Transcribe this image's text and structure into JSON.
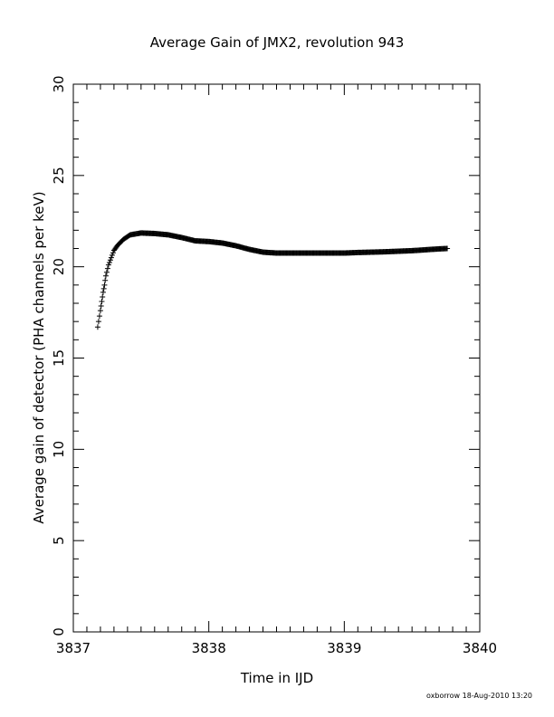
{
  "chart_data": {
    "type": "scatter",
    "title": "Average Gain of JMX2, revolution 943",
    "xlabel": "Time in IJD",
    "ylabel": "Average gain of detector (PHA channels per keV)",
    "xlim": [
      3837,
      3840
    ],
    "ylim": [
      0,
      30
    ],
    "x_ticks": [
      "3837",
      "3838",
      "3839",
      "3840"
    ],
    "y_ticks": [
      "0",
      "5",
      "10",
      "15",
      "20",
      "25",
      "30"
    ],
    "marker": "plus",
    "grid": false,
    "footer": "oxborrow 18-Aug-2010 13:20",
    "series": [
      {
        "points": [
          [
            3837.18,
            16.7
          ],
          [
            3837.2,
            17.6
          ],
          [
            3837.21,
            18.1
          ],
          [
            3837.22,
            18.6
          ],
          [
            3837.23,
            19.0
          ],
          [
            3837.24,
            19.5
          ],
          [
            3837.26,
            20.1
          ],
          [
            3837.28,
            20.5
          ],
          [
            3837.3,
            20.9
          ],
          [
            3837.33,
            21.2
          ],
          [
            3837.37,
            21.5
          ],
          [
            3837.42,
            21.75
          ],
          [
            3837.5,
            21.85
          ],
          [
            3837.6,
            21.82
          ],
          [
            3837.7,
            21.75
          ],
          [
            3837.8,
            21.6
          ],
          [
            3837.9,
            21.42
          ],
          [
            3838.0,
            21.38
          ],
          [
            3838.1,
            21.3
          ],
          [
            3838.2,
            21.15
          ],
          [
            3838.3,
            20.95
          ],
          [
            3838.4,
            20.8
          ],
          [
            3838.5,
            20.75
          ],
          [
            3838.6,
            20.75
          ],
          [
            3838.7,
            20.75
          ],
          [
            3838.8,
            20.75
          ],
          [
            3838.9,
            20.75
          ],
          [
            3839.0,
            20.75
          ],
          [
            3839.1,
            20.78
          ],
          [
            3839.2,
            20.8
          ],
          [
            3839.3,
            20.82
          ],
          [
            3839.4,
            20.85
          ],
          [
            3839.5,
            20.88
          ],
          [
            3839.6,
            20.93
          ],
          [
            3839.7,
            20.98
          ],
          [
            3839.76,
            21.0
          ]
        ]
      }
    ]
  }
}
